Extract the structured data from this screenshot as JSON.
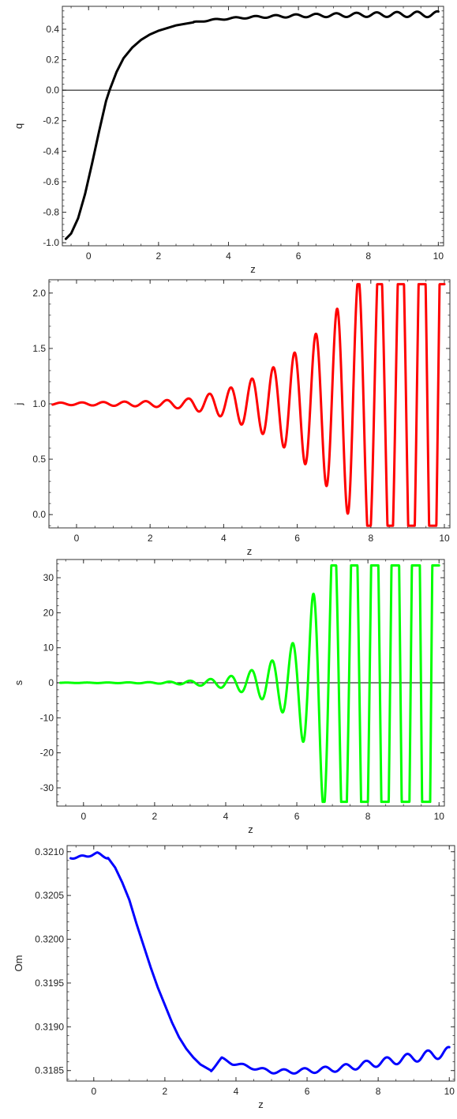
{
  "chart_data": [
    {
      "type": "line",
      "id": "q",
      "xlabel": "z",
      "ylabel": "q",
      "xlim": [
        -0.75,
        10.15
      ],
      "ylim": [
        -1.02,
        0.55
      ],
      "xticks": [
        0,
        2,
        4,
        6,
        8,
        10
      ],
      "xtick_labels": [
        "0",
        "2",
        "4",
        "6",
        "8",
        "10"
      ],
      "yticks": [
        -1.0,
        -0.8,
        -0.6,
        -0.4,
        -0.2,
        0.0,
        0.2,
        0.4
      ],
      "ytick_labels": [
        "-1.0",
        "-0.8",
        "-0.6",
        "-0.4",
        "-0.2",
        "0.0",
        "0.2",
        "0.4"
      ],
      "zero_line": true,
      "color": "#000000",
      "series": [
        {
          "x": [
            -0.65,
            -0.5,
            -0.3,
            -0.1,
            0.1,
            0.3,
            0.5,
            0.6,
            0.8,
            1.0,
            1.25,
            1.5,
            1.75,
            2.0,
            2.5,
            3.0,
            3.5,
            4.0,
            4.5,
            5.0,
            6.0,
            7.0,
            8.0,
            9.0,
            10.0
          ],
          "y": [
            -0.975,
            -0.94,
            -0.84,
            -0.68,
            -0.48,
            -0.27,
            -0.07,
            0.0,
            0.12,
            0.21,
            0.28,
            0.33,
            0.365,
            0.39,
            0.425,
            0.445,
            0.46,
            0.47,
            0.477,
            0.482,
            0.488,
            0.492,
            0.495,
            0.497,
            0.498
          ],
          "oscillation": {
            "start": 3.0,
            "freq": 1.73,
            "amp_start": 0.003,
            "amp_end": 0.019
          }
        }
      ]
    },
    {
      "type": "line",
      "id": "j",
      "xlabel": "z",
      "ylabel": "j",
      "xlim": [
        -0.75,
        10.15
      ],
      "ylim": [
        -0.12,
        2.12
      ],
      "xticks": [
        0,
        2,
        4,
        6,
        8,
        10
      ],
      "xtick_labels": [
        "0",
        "2",
        "4",
        "6",
        "8",
        "10"
      ],
      "yticks": [
        0.0,
        0.5,
        1.0,
        1.5,
        2.0
      ],
      "ytick_labels": [
        "0.0",
        "0.5",
        "1.0",
        "1.5",
        "2.0"
      ],
      "zero_line": false,
      "color": "#ff0000",
      "series": [
        {
          "base": 1.0,
          "freq": 1.73,
          "phase": 0.0,
          "env_x": [
            -0.65,
            0.0,
            1.0,
            2.0,
            3.0,
            4.0,
            5.0,
            5.5,
            6.0,
            6.5,
            7.0,
            7.5,
            8.0,
            9.0,
            10.0
          ],
          "env_y": [
            0.01,
            0.012,
            0.018,
            0.025,
            0.045,
            0.12,
            0.26,
            0.36,
            0.48,
            0.63,
            0.82,
            1.05,
            1.3,
            1.9,
            2.5
          ],
          "clip": [
            -0.1,
            2.08
          ]
        }
      ]
    },
    {
      "type": "line",
      "id": "s",
      "xlabel": "z",
      "ylabel": "s",
      "xlim": [
        -0.75,
        10.15
      ],
      "ylim": [
        -35.2,
        35.2
      ],
      "xticks": [
        0,
        2,
        4,
        6,
        8,
        10
      ],
      "xtick_labels": [
        "0",
        "2",
        "4",
        "6",
        "8",
        "10"
      ],
      "yticks": [
        -30,
        -20,
        -10,
        0,
        10,
        20,
        30
      ],
      "ytick_labels": [
        "-30",
        "-20",
        "-10",
        "0",
        "10",
        "20",
        "30"
      ],
      "zero_line": true,
      "color": "#00ff00",
      "series": [
        {
          "base": 0.0,
          "freq": 1.73,
          "phase": 0.5,
          "env_x": [
            -0.65,
            1.0,
            2.0,
            2.5,
            3.0,
            3.5,
            4.0,
            4.5,
            5.0,
            5.5,
            6.0,
            6.3,
            6.6,
            7.0,
            8.0,
            10.0
          ],
          "env_y": [
            0.05,
            0.1,
            0.2,
            0.35,
            0.6,
            1.0,
            1.6,
            2.8,
            4.6,
            7.5,
            12.5,
            20.0,
            30.0,
            45.0,
            70.0,
            110.0
          ],
          "clip": [
            -34,
            33.5
          ]
        }
      ]
    },
    {
      "type": "line",
      "id": "Om",
      "xlabel": "z",
      "ylabel": "Om",
      "xlim": [
        -0.75,
        10.15
      ],
      "ylim": [
        0.31838,
        0.32107
      ],
      "xticks": [
        0,
        2,
        4,
        6,
        8,
        10
      ],
      "xtick_labels": [
        "0",
        "2",
        "4",
        "6",
        "8",
        "10"
      ],
      "yticks": [
        0.3185,
        0.319,
        0.3195,
        0.32,
        0.3205,
        0.321
      ],
      "ytick_labels": [
        "0.3185",
        "0.3190",
        "0.3195",
        "0.3200",
        "0.3205",
        "0.3210"
      ],
      "zero_line": false,
      "color": "#0000ff",
      "series": [
        {
          "x": [
            -0.65,
            -0.2,
            0.1,
            0.4,
            0.6,
            0.8,
            1.0,
            1.2,
            1.4,
            1.6,
            1.8,
            2.0,
            2.2,
            2.4,
            2.6,
            2.8,
            3.0,
            3.3,
            3.6,
            3.9,
            4.2,
            4.6,
            5.0,
            5.5,
            6.0,
            6.5,
            7.0,
            7.5,
            8.0,
            8.5,
            9.0,
            9.5,
            10.0
          ],
          "y": [
            0.32093,
            0.32095,
            0.32098,
            0.32093,
            0.32082,
            0.32065,
            0.32045,
            0.32018,
            0.31993,
            0.31968,
            0.31945,
            0.31925,
            0.31905,
            0.31888,
            0.31875,
            0.31865,
            0.31857,
            0.3185,
            0.31864,
            0.31858,
            0.31856,
            0.31852,
            0.31849,
            0.31849,
            0.3185,
            0.31851,
            0.31853,
            0.31856,
            0.31859,
            0.31862,
            0.31865,
            0.31868,
            0.31871
          ],
          "oscillation": {
            "start": 3.3,
            "freq": 1.73,
            "amp_start": 8e-06,
            "amp_end": 6e-05
          },
          "early_wiggle": {
            "end": 0.4,
            "freq": 2.2,
            "amp": 1.2e-05
          }
        }
      ]
    }
  ]
}
